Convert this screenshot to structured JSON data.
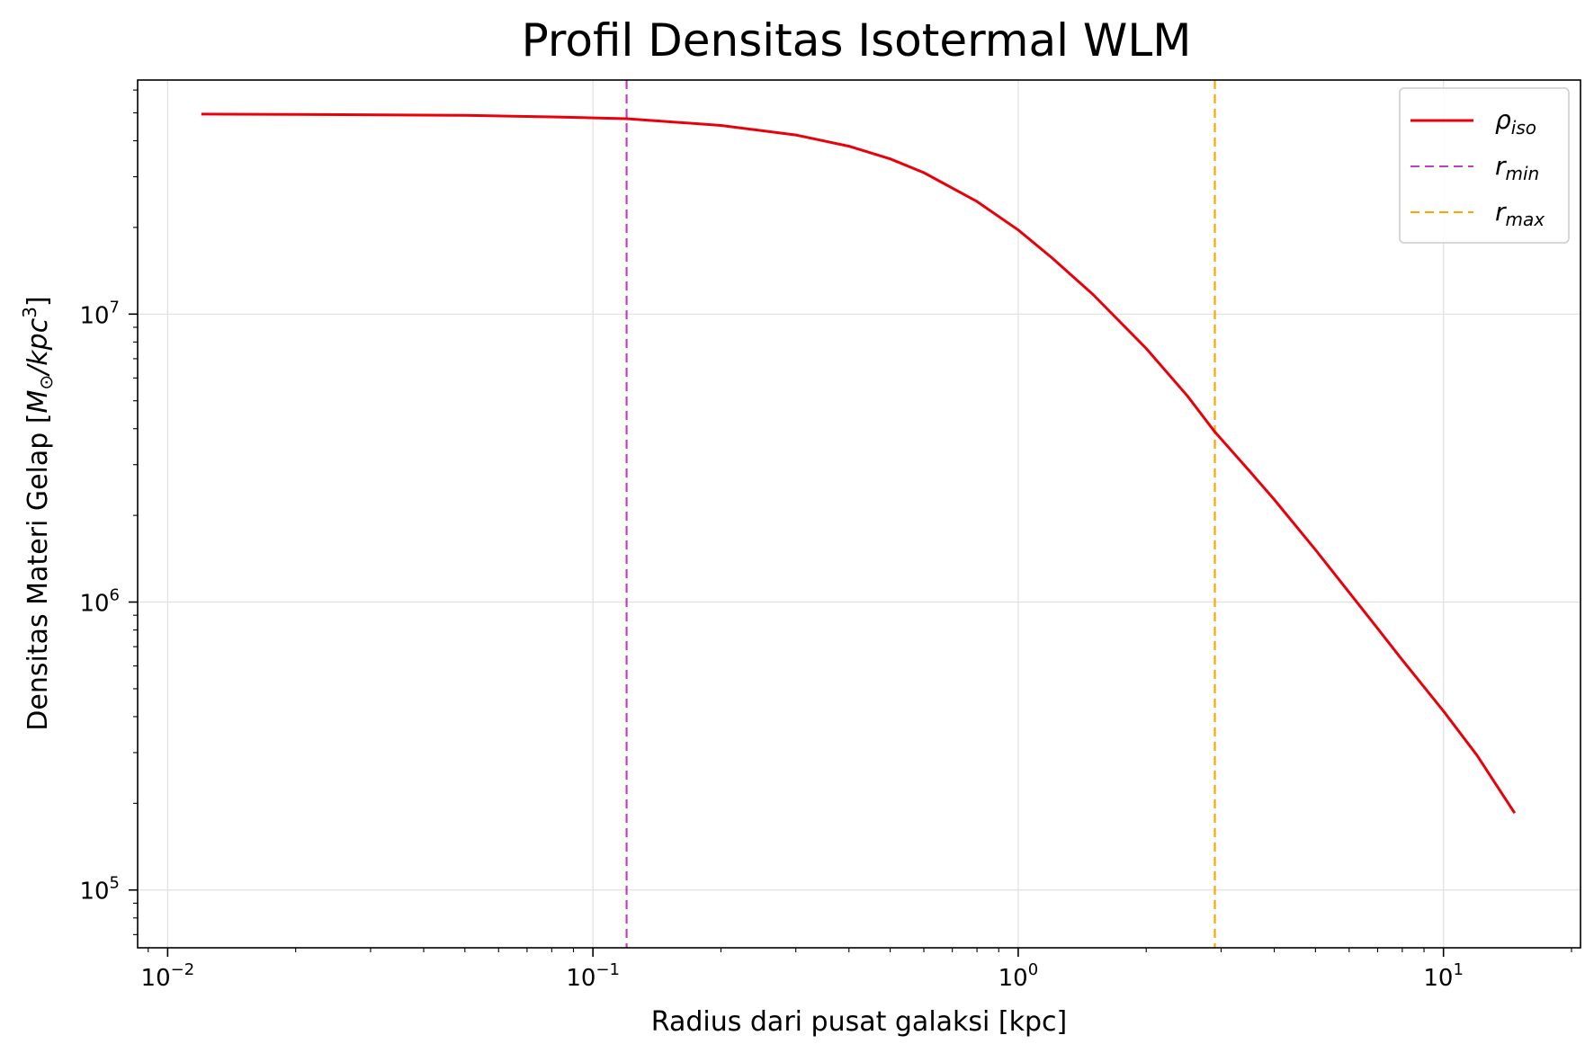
{
  "chart_data": {
    "type": "line",
    "title": "Profil Densitas Isotermal WLM",
    "xlabel": "Radius dari pusat galaksi [kpc]",
    "ylabel_main": "Densitas Materi Gelap [",
    "ylabel_unit_M": "M",
    "ylabel_unit_sun": "⊙",
    "ylabel_unit_per": "/kpc",
    "ylabel_unit_exp": "3",
    "ylabel_close": "]",
    "xscale": "log",
    "yscale": "log",
    "xlim": [
      0.0085,
      21
    ],
    "ylim": [
      63000,
      65000000
    ],
    "grid": true,
    "legend_position": "top-right",
    "x_ticks": [
      {
        "value": 0.01,
        "base": "10",
        "exp": "−2"
      },
      {
        "value": 0.1,
        "base": "10",
        "exp": "−1"
      },
      {
        "value": 1,
        "base": "10",
        "exp": "0"
      },
      {
        "value": 10,
        "base": "10",
        "exp": "1"
      }
    ],
    "y_ticks": [
      {
        "value": 100000,
        "base": "10",
        "exp": "5"
      },
      {
        "value": 1000000,
        "base": "10",
        "exp": "6"
      },
      {
        "value": 10000000,
        "base": "10",
        "exp": "7"
      }
    ],
    "series": [
      {
        "name_main": "ρ",
        "name_sub": "iso",
        "color": "#e8000b",
        "style": "solid",
        "x": [
          0.012,
          0.02,
          0.05,
          0.08,
          0.12,
          0.2,
          0.3,
          0.4,
          0.5,
          0.6,
          0.8,
          1.0,
          1.2,
          1.5,
          2.0,
          2.5,
          2.9,
          3.5,
          4.0,
          5.0,
          6.0,
          7.0,
          8.0,
          10.0,
          12.0,
          14.7
        ],
        "y": [
          49500000,
          49400000,
          49000000,
          48400000,
          47700000,
          45200000,
          41900000,
          38300000,
          34600000,
          31000000,
          24600000,
          19600000,
          15700000,
          11700000,
          7600000,
          5200000,
          3900000,
          2850000,
          2270000,
          1520000,
          1080000,
          810000,
          630000,
          418000,
          293000,
          185000
        ]
      }
    ],
    "vlines": [
      {
        "name_main": "r",
        "name_sub": "min",
        "x": 0.12,
        "color": "#bf40bf",
        "style": "dashed"
      },
      {
        "name_main": "r",
        "name_sub": "max",
        "x": 2.9,
        "color": "#ffa500",
        "style": "dashed"
      }
    ]
  }
}
